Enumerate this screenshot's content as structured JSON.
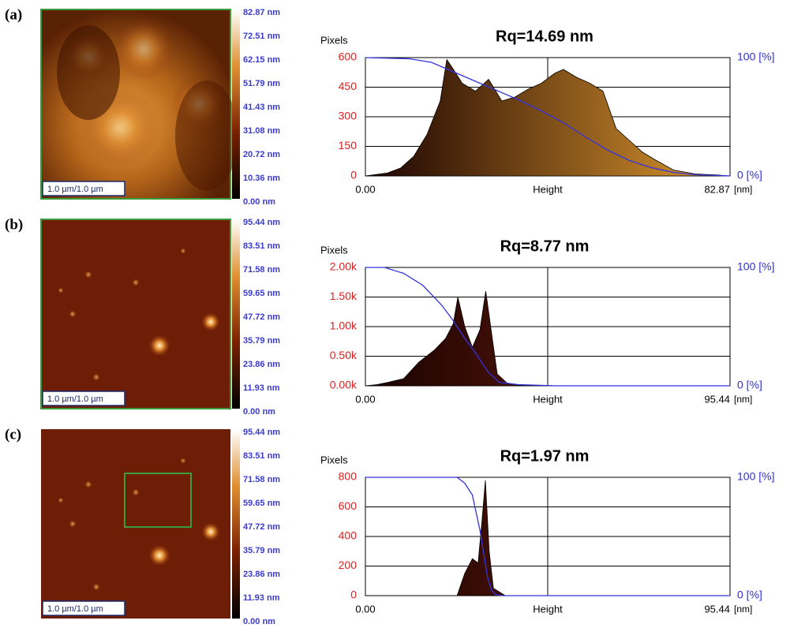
{
  "chart_data": [
    {
      "type": "area",
      "panel": "(a)",
      "title": "Rq=14.69 nm",
      "ylabel": "Pixels",
      "xunit": "[nm]",
      "image": {
        "scale_bar": "1.0 µm/1.0 µm",
        "colorbar_labels": [
          "82.87 nm",
          "72.51 nm",
          "62.15 nm",
          "51.79 nm",
          "41.43 nm",
          "31.08 nm",
          "20.72 nm",
          "10.36 nm",
          "0.00 nm"
        ]
      },
      "xlim": [
        0,
        82.87
      ],
      "xticks": [
        {
          "value": 0,
          "label": "0.00"
        },
        {
          "value": 41.435,
          "label": "Height"
        },
        82.87
      ],
      "ylim": [
        0,
        600
      ],
      "yticks": [
        0,
        150,
        300,
        450,
        600
      ],
      "y2lim": [
        0,
        100
      ],
      "y2ticks": [
        {
          "value": 0,
          "label": "0 [%]"
        },
        {
          "value": 100,
          "label": "100 [%]"
        }
      ],
      "grid": true,
      "series": [
        {
          "color": "#e09a30",
          "x": [
            0,
            5,
            8,
            11,
            14,
            17,
            18.5,
            20,
            22,
            25,
            28,
            31,
            34,
            37,
            40,
            43,
            45,
            48,
            51,
            54,
            57,
            60,
            63,
            66,
            70,
            75,
            80,
            82.87
          ],
          "values": [
            0,
            15,
            40,
            100,
            210,
            380,
            590,
            540,
            470,
            430,
            490,
            380,
            400,
            440,
            470,
            520,
            540,
            500,
            470,
            430,
            240,
            180,
            120,
            80,
            30,
            10,
            5,
            0
          ]
        },
        {
          "color": "#3333dd",
          "axis": "y2",
          "x": [
            0,
            10,
            15,
            20,
            25,
            30,
            35,
            40,
            45,
            50,
            55,
            60,
            65,
            70,
            75,
            82.87
          ],
          "values": [
            100,
            99,
            96,
            88,
            80,
            72,
            64,
            55,
            45,
            33,
            22,
            13,
            7,
            3,
            1,
            0
          ]
        }
      ]
    },
    {
      "type": "area",
      "panel": "(b)",
      "title": "Rq=8.77 nm",
      "ylabel": "Pixels",
      "xunit": "[nm]",
      "image": {
        "scale_bar": "1.0 µm/1.0 µm",
        "colorbar_labels": [
          "95.44 nm",
          "83.51 nm",
          "71.58 nm",
          "59.65 nm",
          "47.72 nm",
          "35.79 nm",
          "23.86 nm",
          "11.93 nm",
          "0.00 nm"
        ]
      },
      "xlim": [
        0,
        95.44
      ],
      "xticks": [
        {
          "value": 0,
          "label": "0.00"
        },
        {
          "value": 47.72,
          "label": "Height"
        },
        95.44
      ],
      "ylim": [
        0,
        2000
      ],
      "yticks": [
        {
          "value": 0,
          "label": "0.00k"
        },
        {
          "value": 500,
          "label": "0.50k"
        },
        {
          "value": 1000,
          "label": "1.00k"
        },
        {
          "value": 1500,
          "label": "1.50k"
        },
        {
          "value": 2000,
          "label": "2.00k"
        }
      ],
      "y2lim": [
        0,
        100
      ],
      "y2ticks": [
        {
          "value": 0,
          "label": "0 [%]"
        },
        {
          "value": 100,
          "label": "100 [%]"
        }
      ],
      "grid": true,
      "series": [
        {
          "color": "#7a2410",
          "x": [
            0,
            3,
            6,
            10,
            14,
            18,
            21,
            23,
            24.2,
            26,
            28,
            30,
            31.5,
            33,
            34.5,
            37,
            40,
            47.72,
            95.44
          ],
          "values": [
            0,
            20,
            60,
            120,
            400,
            600,
            800,
            1050,
            1500,
            1000,
            650,
            950,
            1600,
            900,
            200,
            50,
            10,
            0,
            0
          ]
        },
        {
          "color": "#3333dd",
          "axis": "y2",
          "x": [
            0,
            5,
            10,
            15,
            20,
            23,
            26,
            29,
            32,
            35,
            40,
            50,
            95.44
          ],
          "values": [
            100,
            100,
            95,
            85,
            68,
            55,
            40,
            27,
            12,
            3,
            1,
            0,
            0
          ]
        }
      ]
    },
    {
      "type": "area",
      "panel": "(c)",
      "title": "Rq=1.97 nm",
      "ylabel": "Pixels",
      "xunit": "[nm]",
      "image": {
        "scale_bar": "1.0 µm/1.0 µm",
        "colorbar_labels": [
          "95.44 nm",
          "83.51 nm",
          "71.58 nm",
          "59.65 nm",
          "47.72 nm",
          "35.79 nm",
          "23.86 nm",
          "11.93 nm",
          "0.00 nm"
        ]
      },
      "xlim": [
        0,
        95.44
      ],
      "xticks": [
        {
          "value": 0,
          "label": "0.00"
        },
        {
          "value": 47.72,
          "label": "Height"
        },
        95.44
      ],
      "ylim": [
        0,
        800
      ],
      "yticks": [
        0,
        200,
        400,
        600,
        800
      ],
      "y2lim": [
        0,
        100
      ],
      "y2ticks": [
        {
          "value": 0,
          "label": "0 [%]"
        },
        {
          "value": 100,
          "label": "100 [%]"
        }
      ],
      "grid": true,
      "series": [
        {
          "color": "#7a2410",
          "x": [
            0,
            24,
            26,
            28,
            29.5,
            30.5,
            31.4,
            32.4,
            33.5,
            36.6,
            95.44
          ],
          "values": [
            0,
            0,
            150,
            250,
            220,
            500,
            780,
            300,
            50,
            0,
            0
          ]
        },
        {
          "color": "#3333dd",
          "axis": "y2",
          "x": [
            0,
            24,
            26,
            28,
            30,
            31,
            32,
            33,
            34,
            36,
            95.44
          ],
          "values": [
            100,
            100,
            95,
            85,
            55,
            35,
            15,
            5,
            1,
            0,
            0
          ]
        }
      ]
    }
  ]
}
